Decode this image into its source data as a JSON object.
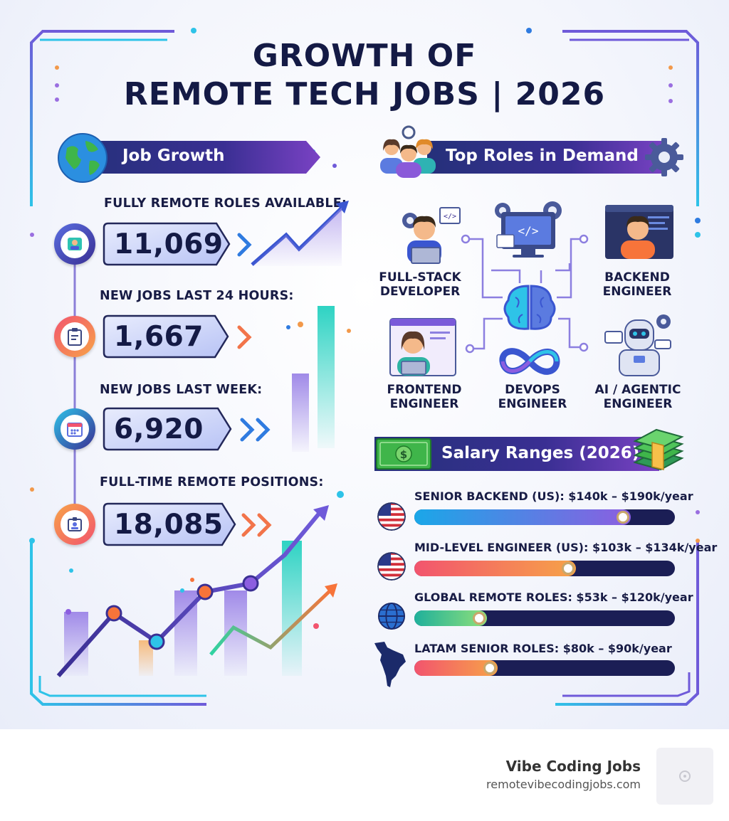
{
  "title": {
    "line1": "GROWTH OF",
    "line2": "REMOTE TECH JOBS | 2026"
  },
  "job_growth": {
    "heading": "Job Growth",
    "stats": [
      {
        "label": "FULLY REMOTE ROLES AVAILABLE:",
        "value": "11,069",
        "icon": "profile-icon"
      },
      {
        "label": "NEW JOBS LAST 24 HOURS:",
        "value": "1,667",
        "icon": "clipboard-icon"
      },
      {
        "label": "NEW JOBS LAST WEEK:",
        "value": "6,920",
        "icon": "calendar-icon"
      },
      {
        "label": "FULL-TIME REMOTE POSITIONS:",
        "value": "18,085",
        "icon": "badge-icon"
      }
    ]
  },
  "top_roles": {
    "heading": "Top Roles in Demand",
    "roles": [
      {
        "label": "FULL-STACK\nDEVELOPER",
        "icon": "developer-laptop-icon"
      },
      {
        "label": "BACKEND\nENGINEER",
        "icon": "backend-engineer-icon"
      },
      {
        "label": "FRONTEND\nENGINEER",
        "icon": "frontend-engineer-icon"
      },
      {
        "label": "DEVOPS\nENGINEER",
        "icon": "devops-infinity-icon"
      },
      {
        "label": "AI / AGENTIC\nENGINEER",
        "icon": "robot-icon"
      }
    ]
  },
  "salary": {
    "heading": "Salary Ranges (2026)",
    "rows": [
      {
        "label": "SENIOR BACKEND (US):  $140k – $190k/year",
        "icon": "us-flag-icon",
        "level": 0.83,
        "colors": [
          "#1aa7e8",
          "#8c5ee0"
        ]
      },
      {
        "label": "MID-LEVEL ENGINEER (US):  $103k – $134k/year",
        "icon": "us-flag-icon",
        "level": 0.62,
        "colors": [
          "#f2546e",
          "#f7a348"
        ]
      },
      {
        "label": "GLOBAL REMOTE ROLES:  $53k – $120k/year",
        "icon": "globe-icon",
        "level": 0.28,
        "colors": [
          "#1fb09b",
          "#8fe07a"
        ]
      },
      {
        "label": "LATAM SENIOR ROLES:  $80k – $90k/year",
        "icon": "latam-map-icon",
        "level": 0.32,
        "colors": [
          "#f2546e",
          "#f7a348"
        ]
      }
    ]
  },
  "footer": {
    "brand": "Vibe Coding Jobs",
    "url": "remotevibecodingjobs.com"
  }
}
